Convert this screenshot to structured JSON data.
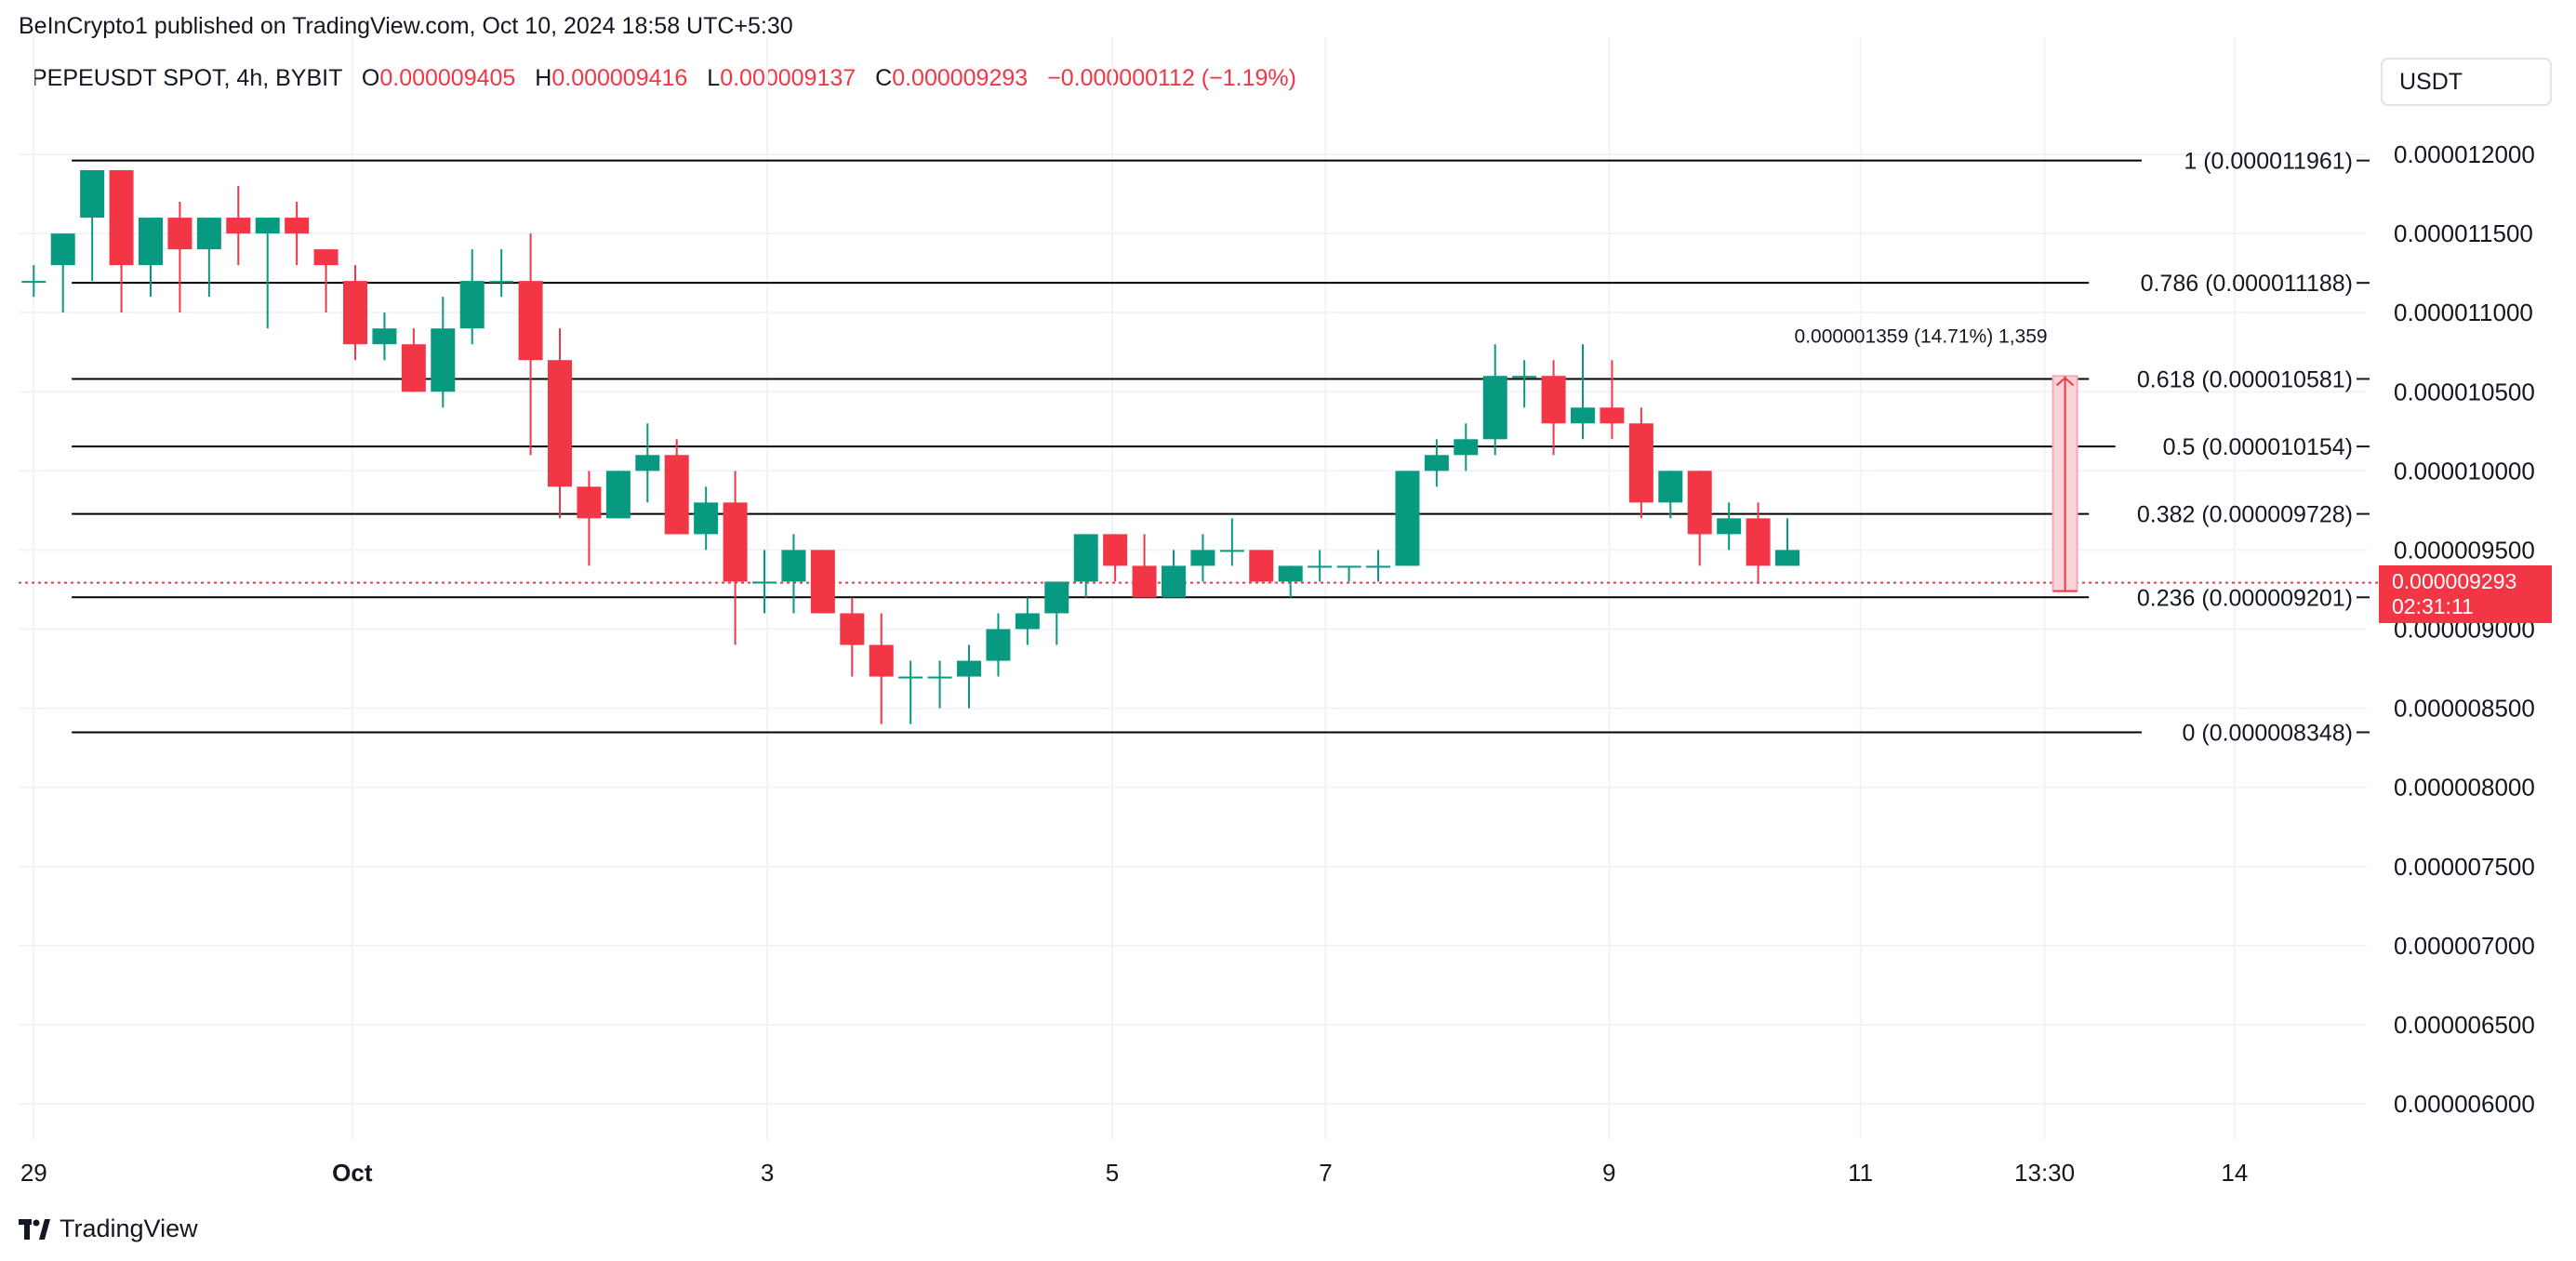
{
  "header": {
    "publisher": "BeInCrypto1 published on TradingView.com, Oct 10, 2024 18:58 UTC+5:30",
    "symbol": "PEPEUSDT SPOT, 4h, BYBIT",
    "o_label": "O",
    "o_value": "0.000009405",
    "h_label": "H",
    "h_value": "0.000009416",
    "l_label": "L",
    "l_value": "0.000009137",
    "c_label": "C",
    "c_value": "0.000009293",
    "change": "−0.000000112 (−1.19%)"
  },
  "currency_button": "USDT",
  "branding": {
    "name": "TradingView"
  },
  "last_price": {
    "price": "0.000009293",
    "countdown": "02:31:11"
  },
  "colors": {
    "up": "#089981",
    "down": "#f23645",
    "fib": "#000000",
    "grid": "#f0f3fa",
    "measure_fill": "#f9d3d7"
  },
  "chart_data": {
    "type": "candlestick",
    "symbol": "PEPEUSDT",
    "timeframe": "4h",
    "y_unit": "USDT",
    "y_ticks": [
      1.2e-05,
      1.15e-05,
      1.1e-05,
      1.05e-05,
      1e-05,
      9.5e-06,
      9e-06,
      8.5e-06,
      8e-06,
      7.5e-06,
      7e-06,
      6.5e-06,
      6e-06
    ],
    "y_tick_labels": [
      "0.000012000",
      "0.000011500",
      "0.000011000",
      "0.000010500",
      "0.000010000",
      "0.000009500",
      "0.000009000",
      "0.000008500",
      "0.000008000",
      "0.000007500",
      "0.000007000",
      "0.000006500",
      "0.000006000"
    ],
    "ylim": [
      5.8e-06,
      1.24e-05
    ],
    "x_ticks": [
      {
        "label": "29",
        "index": 0
      },
      {
        "label": "Oct",
        "index": 10.9
      },
      {
        "label": "3",
        "index": 25.1
      },
      {
        "label": "5",
        "index": 36.9
      },
      {
        "label": "7",
        "index": 44.2
      },
      {
        "label": "9",
        "index": 53.9
      },
      {
        "label": "11",
        "index": 62.5
      },
      {
        "label": "13:30",
        "index": 68.8
      },
      {
        "label": "14",
        "index": 75.3
      }
    ],
    "xlim": [
      -0.2,
      80.3
    ],
    "grid": true,
    "fib_levels": [
      {
        "ratio": "1",
        "price": 1.1961e-05,
        "label": "1 (0.000011961)"
      },
      {
        "ratio": "0.786",
        "price": 1.1188e-05,
        "label": "0.786 (0.000011188)"
      },
      {
        "ratio": "0.618",
        "price": 1.0581e-05,
        "label": "0.618 (0.000010581)"
      },
      {
        "ratio": "0.5",
        "price": 1.0154e-05,
        "label": "0.5 (0.000010154)"
      },
      {
        "ratio": "0.382",
        "price": 9.728e-06,
        "label": "0.382 (0.000009728)"
      },
      {
        "ratio": "0.236",
        "price": 9.201e-06,
        "label": "0.236 (0.000009201)"
      },
      {
        "ratio": "0",
        "price": 8.348e-06,
        "label": "0 (0.000008348)"
      }
    ],
    "fib_start_index": 1.3,
    "fib_end_index": 73.2,
    "measure": {
      "label": "0.000001359 (14.71%) 1,359",
      "index": 69.5,
      "from_price": 9.24e-06,
      "to_price": 1.0599e-05
    },
    "last_price": 9.293e-06,
    "candles": [
      {
        "o": 1.12e-05,
        "h": 1.13e-05,
        "l": 1.11e-05,
        "c": 1.12e-05
      },
      {
        "o": 1.13e-05,
        "h": 1.15e-05,
        "l": 1.1e-05,
        "c": 1.15e-05
      },
      {
        "o": 1.16e-05,
        "h": 1.19e-05,
        "l": 1.12e-05,
        "c": 1.19e-05
      },
      {
        "o": 1.19e-05,
        "h": 1.19e-05,
        "l": 1.1e-05,
        "c": 1.13e-05
      },
      {
        "o": 1.13e-05,
        "h": 1.16e-05,
        "l": 1.11e-05,
        "c": 1.16e-05
      },
      {
        "o": 1.16e-05,
        "h": 1.17e-05,
        "l": 1.1e-05,
        "c": 1.14e-05
      },
      {
        "o": 1.14e-05,
        "h": 1.16e-05,
        "l": 1.11e-05,
        "c": 1.16e-05
      },
      {
        "o": 1.16e-05,
        "h": 1.18e-05,
        "l": 1.13e-05,
        "c": 1.15e-05
      },
      {
        "o": 1.15e-05,
        "h": 1.16e-05,
        "l": 1.09e-05,
        "c": 1.16e-05
      },
      {
        "o": 1.16e-05,
        "h": 1.17e-05,
        "l": 1.13e-05,
        "c": 1.15e-05
      },
      {
        "o": 1.14e-05,
        "h": 1.14e-05,
        "l": 1.1e-05,
        "c": 1.13e-05
      },
      {
        "o": 1.12e-05,
        "h": 1.13e-05,
        "l": 1.07e-05,
        "c": 1.08e-05
      },
      {
        "o": 1.08e-05,
        "h": 1.1e-05,
        "l": 1.07e-05,
        "c": 1.09e-05
      },
      {
        "o": 1.08e-05,
        "h": 1.09e-05,
        "l": 1.05e-05,
        "c": 1.05e-05
      },
      {
        "o": 1.05e-05,
        "h": 1.11e-05,
        "l": 1.04e-05,
        "c": 1.09e-05
      },
      {
        "o": 1.09e-05,
        "h": 1.14e-05,
        "l": 1.08e-05,
        "c": 1.12e-05
      },
      {
        "o": 1.12e-05,
        "h": 1.14e-05,
        "l": 1.11e-05,
        "c": 1.12e-05
      },
      {
        "o": 1.12e-05,
        "h": 1.15e-05,
        "l": 1.01e-05,
        "c": 1.07e-05
      },
      {
        "o": 1.07e-05,
        "h": 1.09e-05,
        "l": 9.7e-06,
        "c": 9.9e-06
      },
      {
        "o": 9.9e-06,
        "h": 1e-05,
        "l": 9.4e-06,
        "c": 9.7e-06
      },
      {
        "o": 9.7e-06,
        "h": 1e-05,
        "l": 9.7e-06,
        "c": 1e-05
      },
      {
        "o": 1e-05,
        "h": 1.03e-05,
        "l": 9.8e-06,
        "c": 1.01e-05
      },
      {
        "o": 1.01e-05,
        "h": 1.02e-05,
        "l": 9.6e-06,
        "c": 9.6e-06
      },
      {
        "o": 9.6e-06,
        "h": 9.9e-06,
        "l": 9.5e-06,
        "c": 9.8e-06
      },
      {
        "o": 9.8e-06,
        "h": 1e-05,
        "l": 8.9e-06,
        "c": 9.3e-06
      },
      {
        "o": 9.3e-06,
        "h": 9.5e-06,
        "l": 9.1e-06,
        "c": 9.3e-06
      },
      {
        "o": 9.3e-06,
        "h": 9.6e-06,
        "l": 9.1e-06,
        "c": 9.5e-06
      },
      {
        "o": 9.5e-06,
        "h": 9.5e-06,
        "l": 9.1e-06,
        "c": 9.1e-06
      },
      {
        "o": 9.1e-06,
        "h": 9.2e-06,
        "l": 8.7e-06,
        "c": 8.9e-06
      },
      {
        "o": 8.9e-06,
        "h": 9.1e-06,
        "l": 8.4e-06,
        "c": 8.7e-06
      },
      {
        "o": 8.7e-06,
        "h": 8.8e-06,
        "l": 8.4e-06,
        "c": 8.7e-06
      },
      {
        "o": 8.7e-06,
        "h": 8.8e-06,
        "l": 8.5e-06,
        "c": 8.7e-06
      },
      {
        "o": 8.7e-06,
        "h": 8.9e-06,
        "l": 8.5e-06,
        "c": 8.8e-06
      },
      {
        "o": 8.8e-06,
        "h": 9.1e-06,
        "l": 8.7e-06,
        "c": 9e-06
      },
      {
        "o": 9e-06,
        "h": 9.2e-06,
        "l": 8.9e-06,
        "c": 9.1e-06
      },
      {
        "o": 9.1e-06,
        "h": 9.3e-06,
        "l": 8.9e-06,
        "c": 9.3e-06
      },
      {
        "o": 9.3e-06,
        "h": 9.6e-06,
        "l": 9.2e-06,
        "c": 9.6e-06
      },
      {
        "o": 9.6e-06,
        "h": 9.6e-06,
        "l": 9.3e-06,
        "c": 9.4e-06
      },
      {
        "o": 9.4e-06,
        "h": 9.6e-06,
        "l": 9.2e-06,
        "c": 9.2e-06
      },
      {
        "o": 9.2e-06,
        "h": 9.5e-06,
        "l": 9.2e-06,
        "c": 9.4e-06
      },
      {
        "o": 9.4e-06,
        "h": 9.6e-06,
        "l": 9.3e-06,
        "c": 9.5e-06
      },
      {
        "o": 9.5e-06,
        "h": 9.7e-06,
        "l": 9.4e-06,
        "c": 9.5e-06
      },
      {
        "o": 9.5e-06,
        "h": 9.5e-06,
        "l": 9.3e-06,
        "c": 9.3e-06
      },
      {
        "o": 9.3e-06,
        "h": 9.4e-06,
        "l": 9.2e-06,
        "c": 9.4e-06
      },
      {
        "o": 9.4e-06,
        "h": 9.5e-06,
        "l": 9.3e-06,
        "c": 9.4e-06
      },
      {
        "o": 9.4e-06,
        "h": 9.4e-06,
        "l": 9.3e-06,
        "c": 9.4e-06
      },
      {
        "o": 9.4e-06,
        "h": 9.5e-06,
        "l": 9.3e-06,
        "c": 9.4e-06
      },
      {
        "o": 9.4e-06,
        "h": 1e-05,
        "l": 9.4e-06,
        "c": 1e-05
      },
      {
        "o": 1e-05,
        "h": 1.02e-05,
        "l": 9.9e-06,
        "c": 1.01e-05
      },
      {
        "o": 1.01e-05,
        "h": 1.03e-05,
        "l": 1e-05,
        "c": 1.02e-05
      },
      {
        "o": 1.02e-05,
        "h": 1.08e-05,
        "l": 1.01e-05,
        "c": 1.06e-05
      },
      {
        "o": 1.06e-05,
        "h": 1.07e-05,
        "l": 1.04e-05,
        "c": 1.06e-05
      },
      {
        "o": 1.06e-05,
        "h": 1.07e-05,
        "l": 1.01e-05,
        "c": 1.03e-05
      },
      {
        "o": 1.03e-05,
        "h": 1.08e-05,
        "l": 1.02e-05,
        "c": 1.04e-05
      },
      {
        "o": 1.04e-05,
        "h": 1.07e-05,
        "l": 1.02e-05,
        "c": 1.03e-05
      },
      {
        "o": 1.03e-05,
        "h": 1.04e-05,
        "l": 9.7e-06,
        "c": 9.8e-06
      },
      {
        "o": 9.8e-06,
        "h": 1e-05,
        "l": 9.7e-06,
        "c": 1e-05
      },
      {
        "o": 1e-05,
        "h": 1e-05,
        "l": 9.4e-06,
        "c": 9.6e-06
      },
      {
        "o": 9.6e-06,
        "h": 9.8e-06,
        "l": 9.5e-06,
        "c": 9.7e-06
      },
      {
        "o": 9.7e-06,
        "h": 9.8e-06,
        "l": 9.3e-06,
        "c": 9.4e-06
      },
      {
        "o": 9.4e-06,
        "h": 9.7e-06,
        "l": 9.4e-06,
        "c": 9.5e-06
      }
    ]
  }
}
